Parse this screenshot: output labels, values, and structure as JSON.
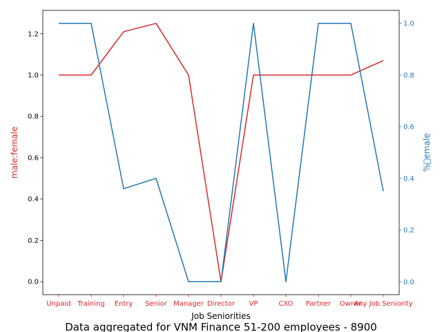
{
  "chart_data": {
    "type": "line",
    "categories": [
      "Unpaid",
      "Training",
      "Entry",
      "Senior",
      "Manager",
      "Director",
      "VP",
      "CXO",
      "Partner",
      "Owner",
      "Any Job Seniority"
    ],
    "xlabel": "Job Seniorities",
    "caption": "Data aggregated for VNM Finance 51-200 employees - 8900",
    "left_axis": {
      "label": "male:female",
      "ylim": [
        -0.063,
        1.313
      ],
      "ticks": [
        0.0,
        0.2,
        0.4,
        0.6,
        0.8,
        1.0,
        1.2
      ],
      "tick_labels": [
        "0.0",
        "0.2",
        "0.4",
        "0.6",
        "0.8",
        "1.0",
        "1.2"
      ],
      "color": "#d62728"
    },
    "right_axis": {
      "label": "%\u0000emale",
      "ylim": [
        -0.05,
        1.05
      ],
      "ticks": [
        0.0,
        0.2,
        0.4,
        0.6,
        0.8,
        1.0
      ],
      "tick_labels": [
        "0.0",
        "0.2",
        "0.4",
        "0.6",
        "0.8",
        "1.0"
      ],
      "color": "#1f77b4"
    },
    "series": [
      {
        "axis": "left",
        "color": "#d62728",
        "values": [
          1.0,
          1.0,
          1.21,
          1.25,
          1.0,
          0.0,
          1.0,
          1.0,
          1.0,
          1.0,
          1.07
        ]
      },
      {
        "axis": "right",
        "color": "#1f77b4",
        "values": [
          1.0,
          1.0,
          0.36,
          0.4,
          0.0,
          0.0,
          1.0,
          0.0,
          1.0,
          1.0,
          0.35
        ]
      }
    ],
    "grid": false,
    "tick_label_color_x": "#d62728"
  }
}
